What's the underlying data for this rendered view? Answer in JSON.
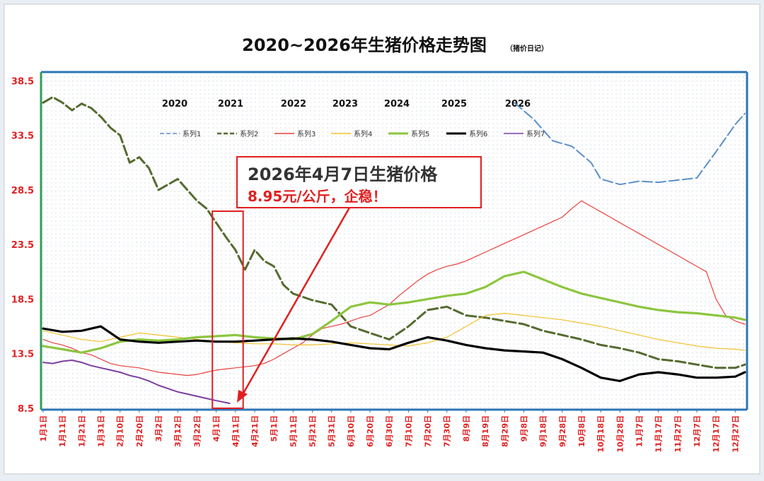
{
  "chart_data": {
    "type": "line",
    "title": "2020~2026年生猪价格走势图",
    "subtitle": "（猪价日记）",
    "ylim": [
      8.5,
      38.5
    ],
    "y_ticks": [
      "8.5",
      "13.5",
      "18.5",
      "23.5",
      "28.5",
      "33.5",
      "38.5"
    ],
    "x_ticks": [
      "1月1日",
      "1月11日",
      "1月21日",
      "1月31日",
      "2月10日",
      "2月20日",
      "3月2日",
      "3月12日",
      "3月22日",
      "4月1日",
      "4月11日",
      "4月21日",
      "5月1日",
      "5月11日",
      "5月21日",
      "5月31日",
      "6月10日",
      "6月20日",
      "6月30日",
      "7月10日",
      "7月20日",
      "7月30日",
      "8月9日",
      "8月19日",
      "8月29日",
      "9月8日",
      "9月18日",
      "9月28日",
      "10月8日",
      "10月18日",
      "10月28日",
      "11月7日",
      "11月17日",
      "11月27日",
      "12月7日",
      "12月17日",
      "12月27日"
    ],
    "year_labels": [
      "2020",
      "2021",
      "2022",
      "2023",
      "2024",
      "2025",
      "2026"
    ],
    "grid": "dotted",
    "legend_position": "top",
    "series": [
      {
        "name": "系列1",
        "year": "2020",
        "color": "#5b8fc9",
        "dash": "dash",
        "x": [
          0,
          10,
          20,
          30,
          40,
          50,
          60,
          70,
          80,
          90,
          100,
          110,
          120,
          130,
          140,
          150,
          160,
          170,
          180,
          190,
          200,
          210,
          220,
          230,
          240,
          250,
          260,
          270,
          280,
          290,
          300,
          310,
          320,
          330,
          340,
          350,
          360,
          365
        ],
        "y": [
          null,
          null,
          null,
          null,
          null,
          null,
          null,
          null,
          null,
          null,
          null,
          null,
          null,
          null,
          null,
          null,
          null,
          null,
          null,
          null,
          null,
          null,
          null,
          null,
          null,
          null,
          null,
          null,
          null,
          null,
          null,
          null,
          null,
          null,
          null,
          null,
          null,
          null
        ]
      },
      {
        "name": "系列2",
        "year": "2021",
        "color": "#556b2f",
        "dash": "dash",
        "x": [
          0,
          5,
          10,
          15,
          20,
          25,
          30,
          35,
          40,
          45,
          50,
          55,
          60,
          65,
          70,
          75,
          80,
          85,
          90,
          95,
          100,
          105,
          110,
          115,
          120,
          125,
          130,
          140,
          150,
          160,
          170,
          180,
          190,
          200,
          210,
          220,
          230,
          240,
          250,
          260,
          270,
          280,
          290,
          300,
          310,
          320,
          330,
          340,
          350,
          360,
          365
        ],
        "y": [
          36.5,
          37.0,
          36.5,
          35.8,
          36.4,
          36.0,
          35.2,
          34.2,
          33.5,
          31.0,
          31.5,
          30.5,
          28.5,
          29.0,
          29.5,
          28.5,
          27.5,
          26.8,
          25.5,
          24.2,
          23.0,
          21.2,
          23.0,
          22.0,
          21.5,
          19.8,
          19.0,
          18.4,
          18.0,
          16.0,
          15.4,
          14.8,
          16.0,
          17.5,
          17.8,
          17.0,
          16.8,
          16.5,
          16.2,
          15.6,
          15.2,
          14.8,
          14.3,
          14.0,
          13.6,
          13.0,
          12.8,
          12.5,
          12.2,
          12.2,
          12.5
        ]
      },
      {
        "name": "系列3",
        "year": "2022",
        "color": "#e8413c",
        "dash": "solid",
        "x": [
          0,
          5,
          10,
          15,
          20,
          25,
          30,
          35,
          40,
          45,
          50,
          55,
          60,
          65,
          70,
          75,
          80,
          85,
          90,
          95,
          100,
          105,
          110,
          115,
          120,
          125,
          130,
          135,
          140,
          145,
          150,
          155,
          160,
          165,
          170,
          175,
          180,
          185,
          190,
          195,
          200,
          205,
          210,
          215,
          220,
          225,
          230,
          235,
          240,
          245,
          250,
          255,
          260,
          265,
          270,
          275,
          280,
          285,
          290,
          295,
          300,
          305,
          310,
          315,
          320,
          325,
          330,
          335,
          340,
          345,
          350,
          355,
          360,
          365
        ],
        "y": [
          14.8,
          14.5,
          14.3,
          14.0,
          13.6,
          13.4,
          13.0,
          12.6,
          12.4,
          12.3,
          12.2,
          12.0,
          11.8,
          11.7,
          11.6,
          11.5,
          11.6,
          11.8,
          12.0,
          12.1,
          12.2,
          12.3,
          12.4,
          12.6,
          13.0,
          13.5,
          14.0,
          14.5,
          15.2,
          15.8,
          16.0,
          16.2,
          16.5,
          16.8,
          17.0,
          17.5,
          18.0,
          18.8,
          19.5,
          20.2,
          20.8,
          21.2,
          21.5,
          21.7,
          22.0,
          22.4,
          22.8,
          23.2,
          23.6,
          24.0,
          24.4,
          24.8,
          25.2,
          25.6,
          26.0,
          26.8,
          27.5,
          27.0,
          26.5,
          26.0,
          25.5,
          25.0,
          24.5,
          24.0,
          23.5,
          23.0,
          22.5,
          22.0,
          21.5,
          21.0,
          18.5,
          17.0,
          16.5,
          16.2
        ]
      },
      {
        "name": "系列4",
        "year": "2023",
        "color": "#f2c12e",
        "dash": "solid",
        "x": [
          0,
          10,
          20,
          30,
          40,
          50,
          60,
          70,
          80,
          90,
          100,
          110,
          120,
          130,
          140,
          150,
          160,
          170,
          180,
          190,
          200,
          210,
          220,
          230,
          240,
          250,
          260,
          270,
          280,
          290,
          300,
          310,
          320,
          330,
          340,
          350,
          360,
          365
        ],
        "y": [
          15.6,
          15.2,
          14.8,
          14.6,
          15.0,
          15.4,
          15.2,
          15.0,
          14.8,
          14.6,
          14.5,
          14.4,
          14.4,
          14.3,
          14.3,
          14.4,
          14.5,
          14.4,
          14.3,
          14.2,
          14.5,
          15.0,
          16.0,
          17.0,
          17.2,
          17.0,
          16.8,
          16.6,
          16.3,
          16.0,
          15.6,
          15.2,
          14.8,
          14.5,
          14.2,
          14.0,
          13.9,
          13.8
        ]
      },
      {
        "name": "系列5",
        "year": "2024",
        "color": "#8cc63f",
        "dash": "solid",
        "x": [
          0,
          10,
          20,
          30,
          40,
          50,
          60,
          70,
          80,
          90,
          100,
          110,
          120,
          130,
          140,
          150,
          160,
          170,
          180,
          190,
          200,
          210,
          220,
          230,
          240,
          250,
          260,
          270,
          280,
          290,
          300,
          310,
          320,
          330,
          340,
          350,
          360,
          365
        ],
        "y": [
          14.2,
          13.9,
          13.6,
          14.0,
          14.6,
          14.8,
          14.7,
          14.8,
          15.0,
          15.1,
          15.2,
          15.0,
          14.9,
          14.8,
          15.3,
          16.5,
          17.8,
          18.2,
          18.0,
          18.2,
          18.5,
          18.8,
          19.0,
          19.6,
          20.6,
          21.0,
          20.3,
          19.6,
          19.0,
          18.6,
          18.2,
          17.8,
          17.5,
          17.3,
          17.2,
          17.0,
          16.8,
          16.6
        ]
      },
      {
        "name": "系列6",
        "year": "2025",
        "color": "#000000",
        "dash": "solid",
        "x": [
          0,
          10,
          20,
          30,
          40,
          50,
          60,
          70,
          80,
          90,
          100,
          110,
          120,
          130,
          140,
          150,
          160,
          170,
          180,
          190,
          200,
          210,
          220,
          230,
          240,
          250,
          260,
          270,
          280,
          290,
          300,
          310,
          320,
          330,
          340,
          350,
          360,
          365
        ],
        "y": [
          15.8,
          15.5,
          15.6,
          16.0,
          14.8,
          14.6,
          14.5,
          14.6,
          14.7,
          14.6,
          14.6,
          14.7,
          14.8,
          14.9,
          14.8,
          14.6,
          14.3,
          14.0,
          13.9,
          14.5,
          15.0,
          14.7,
          14.3,
          14.0,
          13.8,
          13.7,
          13.6,
          13.0,
          12.2,
          11.3,
          11.0,
          11.6,
          11.8,
          11.6,
          11.3,
          11.3,
          11.4,
          11.8
        ]
      },
      {
        "name": "系列7",
        "year": "2026",
        "color": "#7b3fa0",
        "dash": "solid",
        "x": [
          0,
          5,
          10,
          15,
          20,
          25,
          30,
          35,
          40,
          45,
          50,
          55,
          60,
          65,
          70,
          75,
          80,
          85,
          90,
          97
        ],
        "y": [
          12.7,
          12.6,
          12.8,
          12.9,
          12.7,
          12.4,
          12.2,
          12.0,
          11.8,
          11.5,
          11.3,
          11.0,
          10.6,
          10.3,
          10.0,
          9.8,
          9.6,
          9.4,
          9.2,
          8.95
        ]
      }
    ],
    "annotation": {
      "line1": "2026年4月7日生猪价格",
      "line2": "8.95元/公斤，企稳！",
      "highlight_x_range": [
        88,
        104
      ]
    }
  },
  "chart_data_2020_override": {}
}
